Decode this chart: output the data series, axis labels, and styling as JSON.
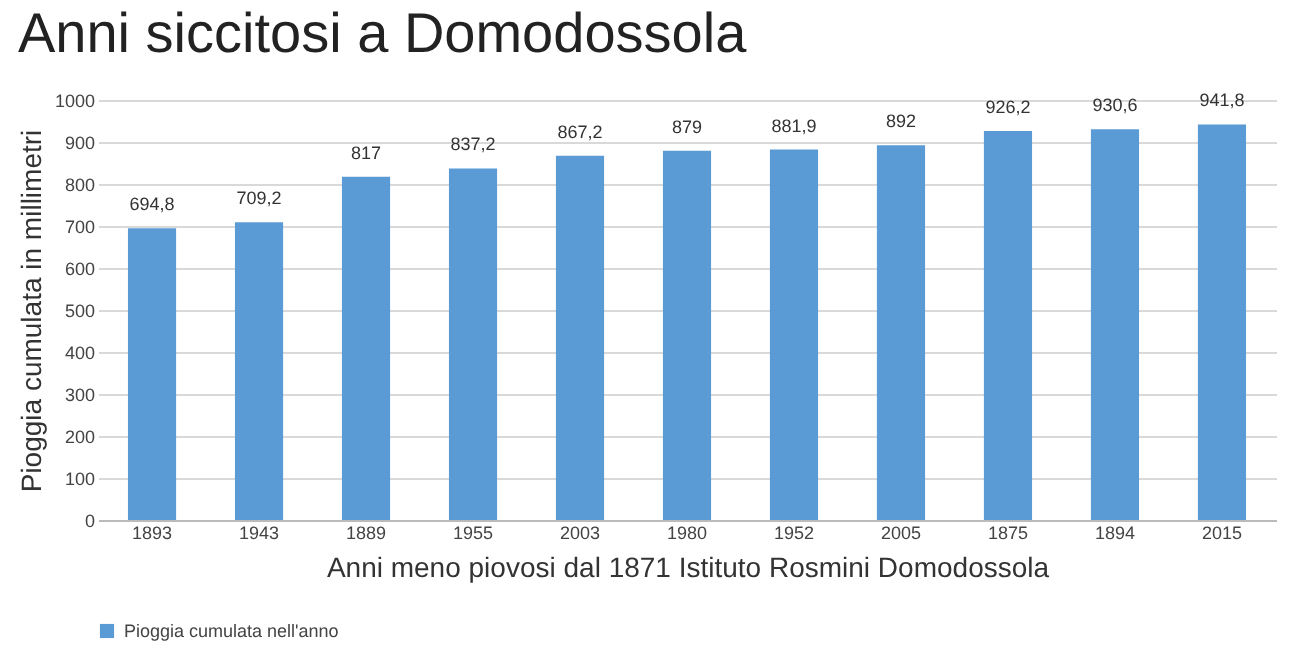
{
  "chart_data": {
    "type": "bar",
    "title": "Anni siccitosi a Domodossola",
    "xlabel": "Anni meno piovosi dal 1871 Istituto Rosmini Domodossola",
    "ylabel": "Pioggia cumulata in millimetri",
    "categories": [
      "1893",
      "1943",
      "1889",
      "1955",
      "2003",
      "1980",
      "1952",
      "2005",
      "1875",
      "1894",
      "2015"
    ],
    "series": [
      {
        "name": "Pioggia cumulata nell'anno",
        "color": "#5b9bd5",
        "values": [
          694.8,
          709.2,
          817,
          837.2,
          867.2,
          879,
          881.9,
          892,
          926.2,
          930.6,
          941.8
        ],
        "value_labels": [
          "694,8",
          "709,2",
          "817",
          "837,2",
          "867,2",
          "879",
          "881,9",
          "892",
          "926,2",
          "930,6",
          "941,8"
        ]
      }
    ],
    "ylim": [
      0,
      1000
    ],
    "yticks": [
      0,
      100,
      200,
      300,
      400,
      500,
      600,
      700,
      800,
      900,
      1000
    ],
    "grid": "y",
    "legend": "bottom"
  }
}
